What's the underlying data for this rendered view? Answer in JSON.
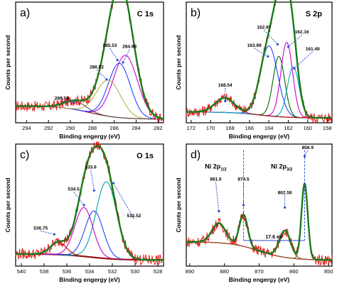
{
  "chart_data": [
    {
      "type": "line",
      "panel_label": "a)",
      "element_label": "C 1s",
      "xlabel": "Binding engergy (eV)",
      "ylabel": "Counts per second",
      "x_reversed": true,
      "xlim": [
        295,
        281.5
      ],
      "ylim": [
        0,
        1.0
      ],
      "xticks": [
        294,
        292,
        290,
        288,
        286,
        284,
        282
      ],
      "peaks": [
        {
          "center": 284.98,
          "amp": 0.52,
          "width": 1.1,
          "color": "#cc00cc",
          "label": "284.98"
        },
        {
          "center": 285.53,
          "amp": 0.45,
          "width": 1.0,
          "color": "#2244ff",
          "label": "285.53"
        },
        {
          "center": 286.52,
          "amp": 0.3,
          "width": 1.1,
          "color": "#b5b548",
          "label": "286.52"
        },
        {
          "center": 289.58,
          "amp": 0.07,
          "width": 1.0,
          "color": "#555555",
          "label": "289.58"
        }
      ],
      "background": {
        "low": 0.03,
        "high": 0.14
      },
      "annotations": [
        {
          "text": "284.98",
          "x": 284.6,
          "y": 0.62,
          "tx": 285.2,
          "ty": 0.5
        },
        {
          "text": "285.53",
          "x": 286.4,
          "y": 0.63,
          "tx": 285.7,
          "ty": 0.52
        },
        {
          "text": "286.52",
          "x": 287.6,
          "y": 0.45,
          "tx": 286.7,
          "ty": 0.36
        },
        {
          "text": "289.58",
          "x": 290.8,
          "y": 0.19,
          "tx": 289.7,
          "ty": 0.17
        }
      ]
    },
    {
      "type": "line",
      "panel_label": "b)",
      "element_label": "S 2p",
      "xlabel": "Binding engergy (eV)",
      "ylabel": "Counts per second",
      "x_reversed": true,
      "xlim": [
        172.5,
        157.5
      ],
      "ylim": [
        0,
        1.0
      ],
      "xticks": [
        172,
        170,
        168,
        166,
        164,
        162,
        160,
        158
      ],
      "peaks": [
        {
          "center": 163.99,
          "amp": 0.58,
          "width": 0.9,
          "color": "#2244ff",
          "label": "163.99"
        },
        {
          "center": 162.97,
          "amp": 0.5,
          "width": 0.6,
          "color": "#006600",
          "label": "162.97"
        },
        {
          "center": 162.16,
          "amp": 0.62,
          "width": 0.6,
          "color": "#cc00cc",
          "label": "162.16"
        },
        {
          "center": 161.49,
          "amp": 0.42,
          "width": 0.6,
          "color": "#00aacc",
          "label": "161.49"
        },
        {
          "center": 168.54,
          "amp": 0.12,
          "width": 1.0,
          "color": "#aa1111",
          "label": "168.54"
        }
      ],
      "background": {
        "low": 0.04,
        "high": 0.09
      },
      "annotations": [
        {
          "text": "162.97",
          "x": 164.5,
          "y": 0.78,
          "tx": 163.1,
          "ty": 0.65
        },
        {
          "text": "163.99",
          "x": 165.5,
          "y": 0.63,
          "tx": 164.1,
          "ty": 0.55
        },
        {
          "text": "162.16",
          "x": 160.6,
          "y": 0.74,
          "tx": 162.0,
          "ty": 0.63
        },
        {
          "text": "161.49",
          "x": 159.5,
          "y": 0.6,
          "tx": 161.4,
          "ty": 0.45
        },
        {
          "text": "168.54",
          "x": 168.5,
          "y": 0.3,
          "tx": 168.5,
          "ty": 0.18
        }
      ]
    },
    {
      "type": "line",
      "panel_label": "c)",
      "element_label": "O 1s",
      "xlabel": "Binding engergy (eV)",
      "ylabel": "Counts per second",
      "x_reversed": true,
      "xlim": [
        540.5,
        527.5
      ],
      "ylim": [
        0,
        1.0
      ],
      "xticks": [
        540,
        538,
        536,
        534,
        532,
        530,
        528
      ],
      "peaks": [
        {
          "center": 532.52,
          "amp": 0.63,
          "width": 0.9,
          "color": "#00a3a3",
          "label": "532.52"
        },
        {
          "center": 533.6,
          "amp": 0.38,
          "width": 0.8,
          "color": "#2244ff",
          "label": "533.6"
        },
        {
          "center": 534.5,
          "amp": 0.4,
          "width": 0.8,
          "color": "#cc00cc",
          "label": "534.5"
        },
        {
          "center": 536.75,
          "amp": 0.1,
          "width": 0.7,
          "color": "#aa1111",
          "label": "536.75"
        }
      ],
      "background": {
        "low": 0.05,
        "high": 0.1
      },
      "annotations": [
        {
          "text": "533.6",
          "x": 533.9,
          "y": 0.8,
          "tx": 533.6,
          "ty": 0.62
        },
        {
          "text": "534.5",
          "x": 535.4,
          "y": 0.62,
          "tx": 534.5,
          "ty": 0.5
        },
        {
          "text": "532.52",
          "x": 530.1,
          "y": 0.4,
          "tx": 531.9,
          "ty": 0.68
        },
        {
          "text": "536.75",
          "x": 538.3,
          "y": 0.3,
          "tx": 537.1,
          "ty": 0.26
        }
      ]
    },
    {
      "type": "line",
      "panel_label": "d)",
      "xlabel": "Binding engergy (eV)",
      "ylabel": "Counts per second",
      "x_reversed": true,
      "xlim": [
        891,
        849
      ],
      "ylim": [
        0,
        1.0
      ],
      "xticks": [
        890,
        880,
        870,
        860,
        850
      ],
      "peaks": [
        {
          "center": 856.9,
          "amp": 0.62,
          "width": 0.9,
          "color": "#228822",
          "label": "856.9"
        },
        {
          "center": 862.56,
          "amp": 0.22,
          "width": 1.6,
          "color": "#aa4422",
          "label": "862.56"
        },
        {
          "center": 874.5,
          "amp": 0.26,
          "width": 1.2,
          "color": "#aa4422",
          "label": "874.5"
        },
        {
          "center": 881.6,
          "amp": 0.16,
          "width": 2.0,
          "color": "#aa4422",
          "label": "881.6"
        }
      ],
      "background": {
        "low": 0.05,
        "high": 0.2
      },
      "annotations": [
        {
          "text": "856.9",
          "x": 856.0,
          "y": 0.96,
          "tx": 856.9,
          "ty": 0.9
        },
        {
          "text": "862.56",
          "x": 862.6,
          "y": 0.59,
          "tx": 862.6,
          "ty": 0.48
        },
        {
          "text": "874.5",
          "x": 874.5,
          "y": 0.7,
          "tx": 874.5,
          "ty": 0.5
        },
        {
          "text": "881.6",
          "x": 882.5,
          "y": 0.7,
          "tx": 881.6,
          "ty": 0.45
        }
      ],
      "level_labels": [
        {
          "main": "Ni 2p",
          "sub": "1/2",
          "x": 882.5,
          "y": 0.8
        },
        {
          "main": "Ni 2p",
          "sub": "3/2",
          "x": 863.5,
          "y": 0.8
        }
      ],
      "splitting": {
        "text": "17.6 eV",
        "from": 874.5,
        "to": 856.9,
        "y": 0.21
      }
    }
  ]
}
